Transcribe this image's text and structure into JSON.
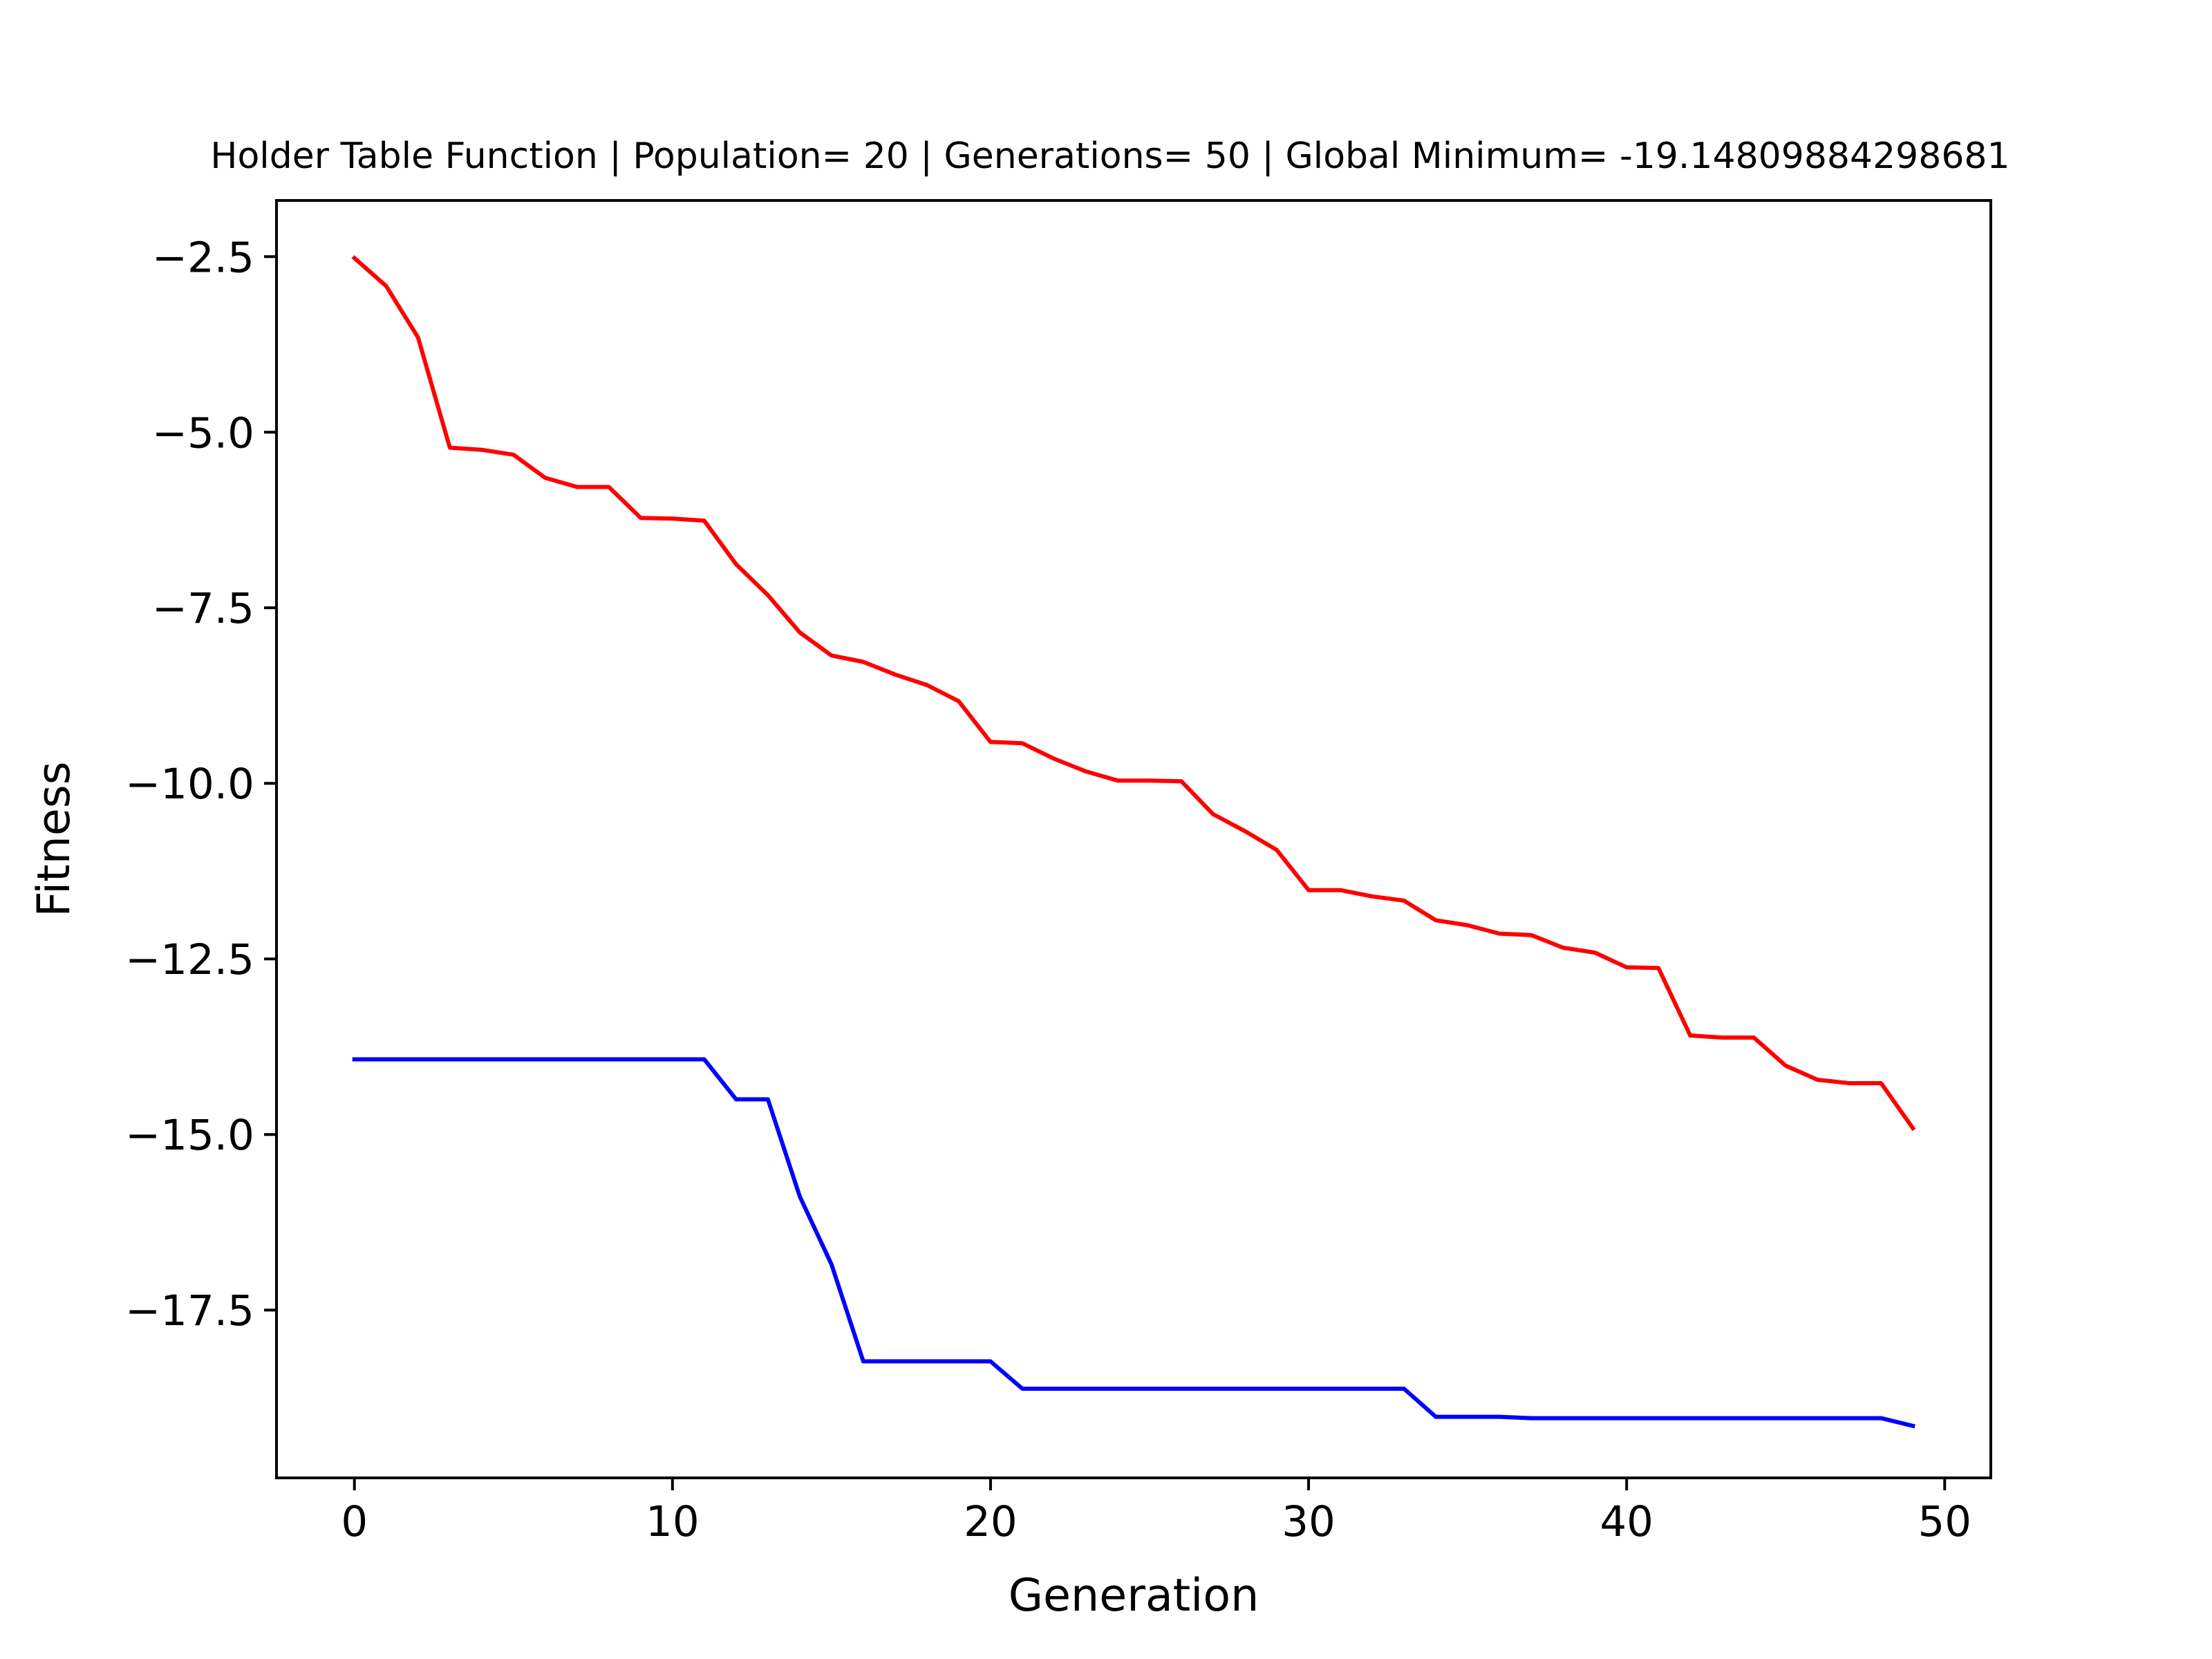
{
  "chart_data": {
    "type": "line",
    "title": "Holder Table Function | Population= 20 | Generations= 50 | Global Minimum= -19.14809884298681",
    "xlabel": "Generation",
    "ylabel": "Fitness",
    "xlim": [
      -2.45,
      51.45
    ],
    "ylim": [
      -19.89,
      -1.7
    ],
    "x_ticks": [
      0,
      10,
      20,
      30,
      40,
      50
    ],
    "x_tick_labels": [
      "0",
      "10",
      "20",
      "30",
      "40",
      "50"
    ],
    "y_ticks": [
      -2.5,
      -5.0,
      -7.5,
      -10.0,
      -12.5,
      -15.0,
      -17.5
    ],
    "y_tick_labels": [
      "−2.5",
      "−5.0",
      "−7.5",
      "−10.0",
      "−12.5",
      "−15.0",
      "−17.5"
    ],
    "grid": false,
    "legend": "none",
    "x": [
      0,
      1,
      2,
      3,
      4,
      5,
      6,
      7,
      8,
      9,
      10,
      11,
      12,
      13,
      14,
      15,
      16,
      17,
      18,
      19,
      20,
      21,
      22,
      23,
      24,
      25,
      26,
      27,
      28,
      29,
      30,
      31,
      32,
      33,
      34,
      35,
      36,
      37,
      38,
      39,
      40,
      41,
      42,
      43,
      44,
      45,
      46,
      47,
      48,
      49
    ],
    "series": [
      {
        "color": "#ff0000",
        "values": [
          -2.52,
          -2.92,
          -3.65,
          -5.22,
          -5.25,
          -5.32,
          -5.65,
          -5.78,
          -5.78,
          -6.22,
          -6.23,
          -6.26,
          -6.88,
          -7.32,
          -7.85,
          -8.18,
          -8.27,
          -8.45,
          -8.6,
          -8.83,
          -9.41,
          -9.43,
          -9.65,
          -9.83,
          -9.96,
          -9.96,
          -9.97,
          -10.44,
          -10.68,
          -10.95,
          -11.52,
          -11.52,
          -11.61,
          -11.67,
          -11.95,
          -12.02,
          -12.14,
          -12.16,
          -12.34,
          -12.41,
          -12.62,
          -12.63,
          -13.59,
          -13.62,
          -13.62,
          -14.02,
          -14.22,
          -14.27,
          -14.27,
          -14.91
        ]
      },
      {
        "color": "#0000ff",
        "values": [
          -13.93,
          -13.93,
          -13.93,
          -13.93,
          -13.93,
          -13.93,
          -13.93,
          -13.93,
          -13.93,
          -13.93,
          -13.93,
          -13.93,
          -14.5,
          -14.5,
          -15.88,
          -16.85,
          -18.23,
          -18.23,
          -18.23,
          -18.23,
          -18.23,
          -18.62,
          -18.62,
          -18.62,
          -18.62,
          -18.62,
          -18.62,
          -18.62,
          -18.62,
          -18.62,
          -18.62,
          -18.62,
          -18.62,
          -18.62,
          -19.02,
          -19.02,
          -19.02,
          -19.04,
          -19.04,
          -19.04,
          -19.04,
          -19.04,
          -19.04,
          -19.04,
          -19.04,
          -19.04,
          -19.04,
          -19.04,
          -19.04,
          -19.15
        ]
      }
    ]
  }
}
